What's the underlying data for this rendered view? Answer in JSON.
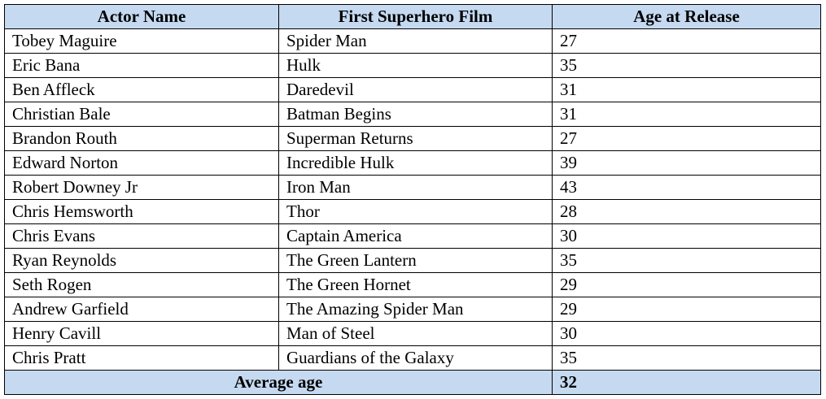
{
  "table": {
    "headers": [
      "Actor Name",
      "First Superhero Film",
      "Age at Release"
    ],
    "rows": [
      [
        "Tobey Maguire",
        "Spider Man",
        "27"
      ],
      [
        "Eric Bana",
        "Hulk",
        "35"
      ],
      [
        "Ben Affleck",
        "Daredevil",
        "31"
      ],
      [
        "Christian Bale",
        "Batman Begins",
        "31"
      ],
      [
        "Brandon Routh",
        "Superman Returns",
        "27"
      ],
      [
        "Edward Norton",
        "Incredible Hulk",
        "39"
      ],
      [
        "Robert Downey Jr",
        "Iron Man",
        "43"
      ],
      [
        "Chris Hemsworth",
        "Thor",
        "28"
      ],
      [
        "Chris Evans",
        "Captain America",
        "30"
      ],
      [
        "Ryan Reynolds",
        "The Green Lantern",
        "35"
      ],
      [
        "Seth Rogen",
        "The Green Hornet",
        "29"
      ],
      [
        "Andrew Garfield",
        "The Amazing Spider Man",
        "29"
      ],
      [
        "Henry Cavill",
        "Man of Steel",
        "30"
      ],
      [
        "Chris Pratt",
        "Guardians of the Galaxy",
        "35"
      ]
    ],
    "footer": {
      "label": "Average age",
      "value": "32"
    }
  },
  "colors": {
    "header_fill": "#c5d9f1",
    "border": "#000000"
  }
}
